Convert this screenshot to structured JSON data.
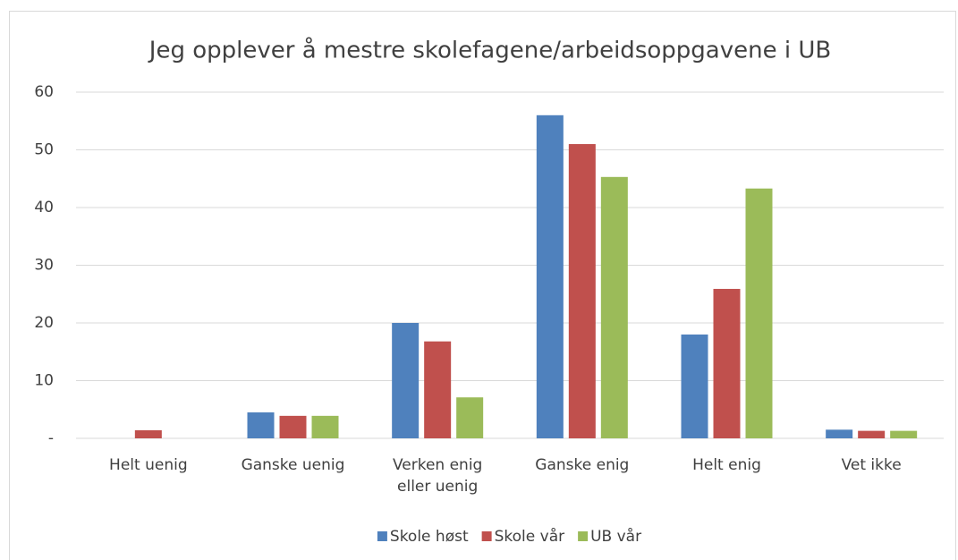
{
  "chart_data": {
    "type": "bar",
    "title": "Jeg opplever å mestre skolefagene/arbeidsoppgavene i UB",
    "categories": [
      "Helt uenig",
      "Ganske uenig",
      "Verken enig eller uenig",
      "Ganske enig",
      "Helt enig",
      "Vet ikke"
    ],
    "series": [
      {
        "name": "Skole høst",
        "color": "#4f81bd",
        "values": [
          0,
          4.5,
          20,
          56,
          18,
          1.5
        ]
      },
      {
        "name": "Skole vår",
        "color": "#c0504d",
        "values": [
          1.4,
          3.9,
          16.8,
          51,
          25.9,
          1.3
        ]
      },
      {
        "name": "UB vår",
        "color": "#9bbb59",
        "values": [
          0,
          3.9,
          7.1,
          45.3,
          43.3,
          1.3
        ]
      }
    ],
    "ylim": [
      0,
      60
    ],
    "yticks": [
      {
        "value": 0,
        "label": "-"
      },
      10,
      20,
      30,
      40,
      50,
      60
    ],
    "grid": true,
    "legend": "bottom"
  }
}
